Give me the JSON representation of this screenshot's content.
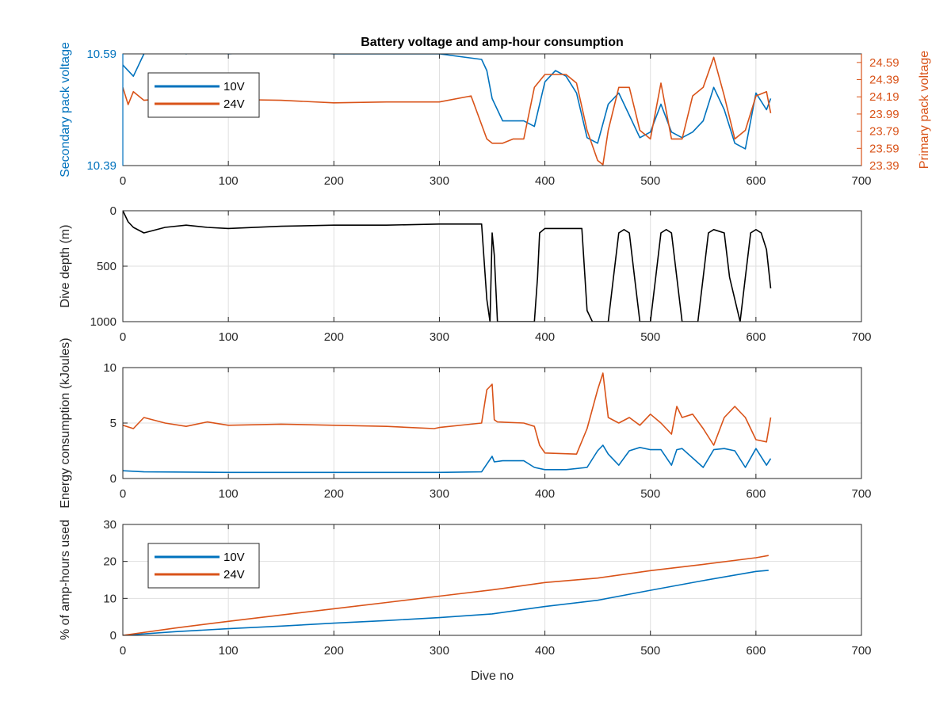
{
  "figure": {
    "title": "Battery voltage and amp-hour consumption",
    "colors": {
      "v10": "#0072BD",
      "v24": "#D95319",
      "depth": "#000000",
      "axis": "#262626",
      "grid": "#DFDFDF"
    }
  },
  "chart_data": [
    {
      "type": "line",
      "title": "Battery voltage and amp-hour consumption",
      "xlabel": "",
      "ylabel_left": "Secondary pack voltage",
      "ylabel_right": "Primary pack voltage",
      "xlim": [
        0,
        700
      ],
      "xticks": [
        "0",
        "100",
        "200",
        "300",
        "400",
        "500",
        "600",
        "700"
      ],
      "ylim_left": [
        10.39,
        10.59
      ],
      "yticks_left": [
        "10.39",
        "10.59"
      ],
      "ylim_right": [
        23.39,
        24.69
      ],
      "yticks_right": [
        "23.39",
        "23.59",
        "23.79",
        "23.99",
        "24.19",
        "24.39",
        "24.59"
      ],
      "grid": true,
      "legend": {
        "position": "top-left",
        "entries": [
          "10V",
          "24V"
        ]
      },
      "series": [
        {
          "name": "10V",
          "axis": "left",
          "color": "#0072BD",
          "x": [
            0,
            10,
            20,
            40,
            60,
            80,
            100,
            150,
            200,
            250,
            300,
            320,
            340,
            345,
            350,
            360,
            370,
            380,
            390,
            400,
            410,
            420,
            430,
            440,
            450,
            460,
            470,
            480,
            490,
            500,
            510,
            520,
            530,
            540,
            550,
            560,
            570,
            580,
            590,
            600,
            610,
            614
          ],
          "y": [
            10.57,
            10.55,
            10.59,
            10.6,
            10.59,
            10.6,
            10.59,
            10.595,
            10.59,
            10.59,
            10.59,
            10.585,
            10.58,
            10.56,
            10.51,
            10.47,
            10.47,
            10.47,
            10.46,
            10.54,
            10.56,
            10.55,
            10.52,
            10.44,
            10.43,
            10.5,
            10.52,
            10.48,
            10.44,
            10.45,
            10.5,
            10.45,
            10.44,
            10.45,
            10.47,
            10.53,
            10.49,
            10.43,
            10.42,
            10.52,
            10.49,
            10.51
          ]
        },
        {
          "name": "24V",
          "axis": "right",
          "color": "#D95319",
          "x": [
            0,
            5,
            10,
            20,
            40,
            60,
            80,
            100,
            150,
            200,
            250,
            300,
            330,
            345,
            350,
            360,
            370,
            380,
            390,
            400,
            410,
            420,
            430,
            440,
            450,
            455,
            460,
            470,
            480,
            490,
            500,
            510,
            520,
            530,
            540,
            550,
            560,
            570,
            580,
            590,
            600,
            610,
            614
          ],
          "y": [
            24.3,
            24.1,
            24.25,
            24.15,
            24.17,
            24.18,
            24.15,
            24.16,
            24.15,
            24.12,
            24.13,
            24.13,
            24.2,
            23.7,
            23.65,
            23.65,
            23.7,
            23.7,
            24.3,
            24.45,
            24.45,
            24.45,
            24.35,
            23.8,
            23.45,
            23.4,
            23.8,
            24.3,
            24.3,
            23.8,
            23.7,
            24.35,
            23.7,
            23.7,
            24.2,
            24.3,
            24.65,
            24.2,
            23.7,
            23.8,
            24.2,
            24.25,
            24.0
          ]
        }
      ]
    },
    {
      "type": "line",
      "ylabel": "Dive depth (m)",
      "xlim": [
        0,
        700
      ],
      "xticks": [
        "0",
        "100",
        "200",
        "300",
        "400",
        "500",
        "600",
        "700"
      ],
      "ylim": [
        0,
        1000
      ],
      "y_reversed": true,
      "yticks": [
        "0",
        "500",
        "1000"
      ],
      "grid": true,
      "series": [
        {
          "color": "#000000",
          "x": [
            0,
            5,
            10,
            20,
            40,
            60,
            80,
            100,
            150,
            200,
            250,
            300,
            340,
            345,
            348,
            350,
            352,
            355,
            360,
            370,
            390,
            393,
            395,
            400,
            410,
            420,
            435,
            440,
            445,
            460,
            465,
            470,
            475,
            480,
            485,
            490,
            495,
            500,
            505,
            510,
            515,
            520,
            525,
            530,
            545,
            550,
            555,
            560,
            570,
            575,
            585,
            590,
            595,
            600,
            605,
            610,
            614
          ],
          "y": [
            0,
            100,
            150,
            200,
            150,
            130,
            150,
            160,
            140,
            130,
            130,
            120,
            120,
            800,
            1000,
            200,
            400,
            1000,
            1000,
            1000,
            1000,
            600,
            200,
            160,
            160,
            160,
            160,
            900,
            1000,
            1000,
            600,
            200,
            170,
            200,
            600,
            1000,
            1000,
            1000,
            600,
            200,
            170,
            200,
            600,
            1000,
            1000,
            600,
            200,
            170,
            200,
            600,
            1000,
            600,
            200,
            170,
            200,
            350,
            700
          ]
        }
      ]
    },
    {
      "type": "line",
      "ylabel": "Energy consumption (kJoules)",
      "xlim": [
        0,
        700
      ],
      "xticks": [
        "0",
        "100",
        "200",
        "300",
        "400",
        "500",
        "600",
        "700"
      ],
      "ylim": [
        0,
        10
      ],
      "yticks": [
        "0",
        "5",
        "10"
      ],
      "grid": true,
      "series": [
        {
          "name": "10V",
          "color": "#0072BD",
          "x": [
            0,
            20,
            100,
            200,
            300,
            340,
            345,
            350,
            352,
            360,
            380,
            390,
            400,
            420,
            440,
            450,
            455,
            460,
            470,
            480,
            490,
            500,
            510,
            520,
            525,
            530,
            550,
            560,
            570,
            580,
            590,
            600,
            610,
            614
          ],
          "y": [
            0.7,
            0.6,
            0.55,
            0.55,
            0.55,
            0.6,
            1.3,
            2.0,
            1.5,
            1.6,
            1.6,
            1.0,
            0.8,
            0.8,
            1.0,
            2.5,
            3.0,
            2.2,
            1.2,
            2.5,
            2.8,
            2.6,
            2.6,
            1.2,
            2.6,
            2.7,
            1.0,
            2.6,
            2.7,
            2.5,
            1.0,
            2.7,
            1.2,
            1.8
          ]
        },
        {
          "name": "24V",
          "color": "#D95319",
          "x": [
            0,
            10,
            20,
            40,
            60,
            80,
            100,
            150,
            200,
            250,
            295,
            300,
            340,
            345,
            350,
            352,
            355,
            380,
            390,
            395,
            400,
            430,
            440,
            450,
            455,
            460,
            470,
            480,
            490,
            500,
            510,
            520,
            525,
            530,
            540,
            550,
            560,
            570,
            580,
            590,
            600,
            610,
            614
          ],
          "y": [
            4.8,
            4.5,
            5.5,
            5.0,
            4.7,
            5.1,
            4.8,
            4.9,
            4.8,
            4.7,
            4.5,
            4.6,
            5.0,
            8.0,
            8.5,
            5.3,
            5.1,
            5.0,
            4.7,
            3.0,
            2.3,
            2.2,
            4.5,
            8.0,
            9.5,
            5.5,
            5.0,
            5.5,
            4.8,
            5.8,
            5.0,
            4.0,
            6.5,
            5.5,
            5.8,
            4.5,
            3.0,
            5.5,
            6.5,
            5.5,
            3.5,
            3.3,
            5.5
          ]
        }
      ]
    },
    {
      "type": "line",
      "xlabel": "Dive no",
      "ylabel": "% of amp-hours used",
      "xlim": [
        0,
        700
      ],
      "xticks": [
        "0",
        "100",
        "200",
        "300",
        "400",
        "500",
        "600",
        "700"
      ],
      "ylim": [
        0,
        30
      ],
      "yticks": [
        "0",
        "10",
        "20",
        "30"
      ],
      "grid": true,
      "legend": {
        "position": "top-left",
        "entries": [
          "10V",
          "24V"
        ]
      },
      "series": [
        {
          "name": "10V",
          "color": "#0072BD",
          "x": [
            0,
            50,
            100,
            150,
            200,
            250,
            300,
            350,
            400,
            450,
            500,
            550,
            600,
            612
          ],
          "y": [
            0,
            1.0,
            1.8,
            2.5,
            3.3,
            4.0,
            4.8,
            5.8,
            7.8,
            9.5,
            12.2,
            14.8,
            17.3,
            17.6
          ]
        },
        {
          "name": "24V",
          "color": "#D95319",
          "x": [
            0,
            50,
            100,
            150,
            200,
            250,
            300,
            350,
            400,
            450,
            500,
            550,
            600,
            612
          ],
          "y": [
            0,
            2.0,
            3.8,
            5.5,
            7.2,
            8.9,
            10.6,
            12.3,
            14.3,
            15.5,
            17.5,
            19.2,
            21.0,
            21.6
          ]
        }
      ]
    }
  ]
}
